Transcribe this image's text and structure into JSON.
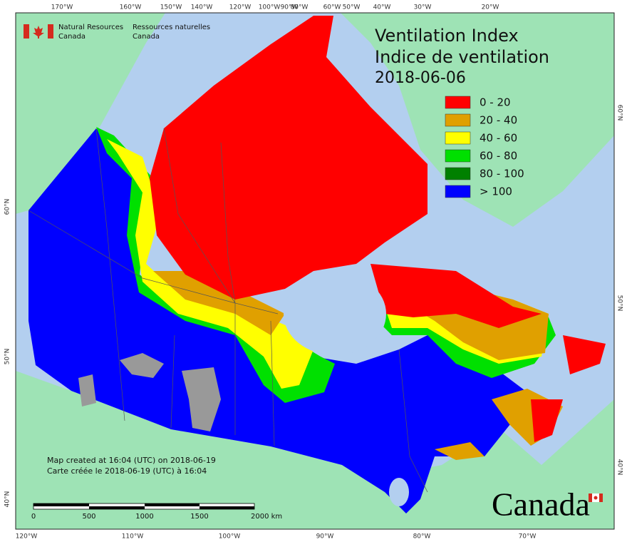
{
  "header": {
    "department_en": [
      "Natural Resources",
      "Canada"
    ],
    "department_fr": [
      "Ressources naturelles",
      "Canada"
    ]
  },
  "title": {
    "lines": [
      "Ventilation Index",
      "Indice de ventilation",
      "2018-06-06"
    ]
  },
  "legend": {
    "items": [
      {
        "label": "0 - 20",
        "color": "#ff0000"
      },
      {
        "label": "20 - 40",
        "color": "#e0a000"
      },
      {
        "label": "40 - 60",
        "color": "#ffff00"
      },
      {
        "label": "60 - 80",
        "color": "#00e000"
      },
      {
        "label": "80 - 100",
        "color": "#008000"
      },
      {
        "label": "> 100",
        "color": "#0000ff"
      }
    ]
  },
  "graticule": {
    "top": [
      "170°W",
      "160°W",
      "150°W",
      "140°W",
      "120°W",
      "100°W",
      "90°W",
      "80°W",
      "60°W",
      "50°W",
      "40°W",
      "30°W",
      "20°W"
    ],
    "bottom": [
      "120°W",
      "110°W",
      "100°W",
      "90°W",
      "80°W",
      "70°W"
    ],
    "left": [
      "60°N",
      "50°N",
      "40°N"
    ],
    "right": [
      "60°N",
      "50°N",
      "40°N"
    ]
  },
  "notes": [
    "Map created at 16:04 (UTC) on 2018-06-19",
    "Carte créée le 2018-06-19 (UTC) à 16:04"
  ],
  "scale_bar": {
    "labels": [
      "0",
      "500",
      "1000",
      "1500",
      "2000 km"
    ]
  },
  "wordmark": "Canada"
}
